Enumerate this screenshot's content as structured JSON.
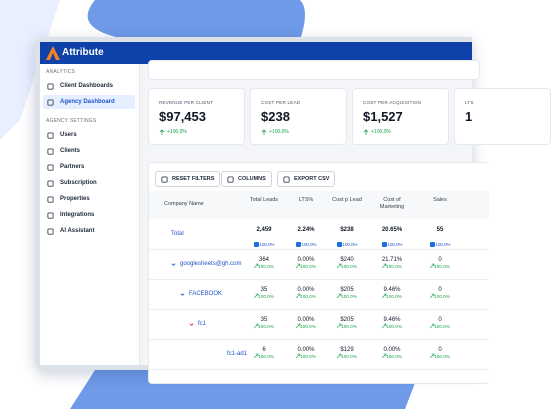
{
  "header": {
    "brand": "Attribute"
  },
  "sidebar": {
    "sections": [
      {
        "title": "ANALYTICS",
        "items": [
          "Client Dashboards",
          "Agency Dashboard"
        ]
      },
      {
        "title": "AGENCY SETTINGS",
        "items": [
          "Users",
          "Clients",
          "Partners",
          "Subscription",
          "Properties",
          "Integrations",
          "AI Assistant"
        ]
      }
    ],
    "active": "Agency Dashboard"
  },
  "kpis": [
    {
      "label": "REVENUE PER CLIENT",
      "value": "$97,453",
      "delta": "+100,0%"
    },
    {
      "label": "COST PER LEAD",
      "value": "$238",
      "delta": "+100,0%"
    },
    {
      "label": "COST PER ACQUISITION",
      "value": "$1,527",
      "delta": "+100,0%"
    },
    {
      "label": "LTS",
      "value": "1",
      "delta": ""
    }
  ],
  "toolbar": [
    "RESET FILTERS",
    "COLUMNS",
    "EXPORT CSV"
  ],
  "table": {
    "columns": [
      "Company Name",
      "Total Leads",
      "LTS%",
      "Cost p Lead",
      "Cost of Marketing",
      "Sales"
    ],
    "rows": [
      {
        "name": "Total",
        "level": 0,
        "cells": [
          [
            "2,459",
            "100.0%"
          ],
          [
            "2.24%",
            "100.0%"
          ],
          [
            "$238",
            "100.0%"
          ],
          [
            "20.65%",
            "100.0%"
          ],
          [
            "55",
            "100.0%"
          ]
        ]
      },
      {
        "name": "googlesheets@gh.com",
        "level": 1,
        "cells": [
          [
            "364",
            "100.0%"
          ],
          [
            "0.00%",
            "100.0%"
          ],
          [
            "$240",
            "100.0%"
          ],
          [
            "21.71%",
            "100.0%"
          ],
          [
            "0",
            "100.0%"
          ]
        ]
      },
      {
        "name": "FACEBOOK",
        "level": 2,
        "cells": [
          [
            "35",
            "100.0%"
          ],
          [
            "0.00%",
            "100.0%"
          ],
          [
            "$205",
            "100.0%"
          ],
          [
            "9.46%",
            "100.0%"
          ],
          [
            "0",
            "100.0%"
          ]
        ]
      },
      {
        "name": "fc1",
        "level": 3,
        "cells": [
          [
            "35",
            "100.0%"
          ],
          [
            "0.00%",
            "100.0%"
          ],
          [
            "$205",
            "100.0%"
          ],
          [
            "9.46%",
            "100.0%"
          ],
          [
            "0",
            "100.0%"
          ]
        ]
      },
      {
        "name": "fc1-ad1",
        "level": 4,
        "cells": [
          [
            "6",
            "100.0%"
          ],
          [
            "0.00%",
            "100.0%"
          ],
          [
            "$129",
            "100.0%"
          ],
          [
            "0.00%",
            "100.0%"
          ],
          [
            "0",
            "100.0%"
          ]
        ]
      }
    ]
  }
}
